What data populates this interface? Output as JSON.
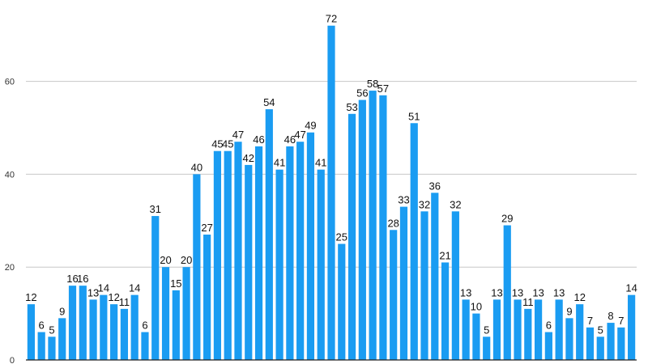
{
  "chart_data": {
    "type": "bar",
    "values": [
      12,
      6,
      5,
      9,
      16,
      16,
      13,
      14,
      12,
      11,
      14,
      6,
      31,
      20,
      15,
      20,
      40,
      27,
      45,
      45,
      47,
      42,
      46,
      54,
      41,
      46,
      47,
      49,
      41,
      72,
      25,
      53,
      56,
      58,
      57,
      28,
      33,
      51,
      32,
      36,
      21,
      32,
      13,
      10,
      5,
      13,
      29,
      13,
      11,
      13,
      6,
      13,
      9,
      12,
      7,
      5,
      8,
      7,
      14
    ],
    "title": "",
    "xlabel": "",
    "ylabel": "",
    "ylim": [
      0,
      75
    ],
    "yticks": [
      0,
      20,
      40,
      60
    ],
    "grid": true,
    "legend": "none",
    "bar_color": "#1a9cf2",
    "grid_color": "#c8c8c8",
    "axis_color": "#222222"
  }
}
